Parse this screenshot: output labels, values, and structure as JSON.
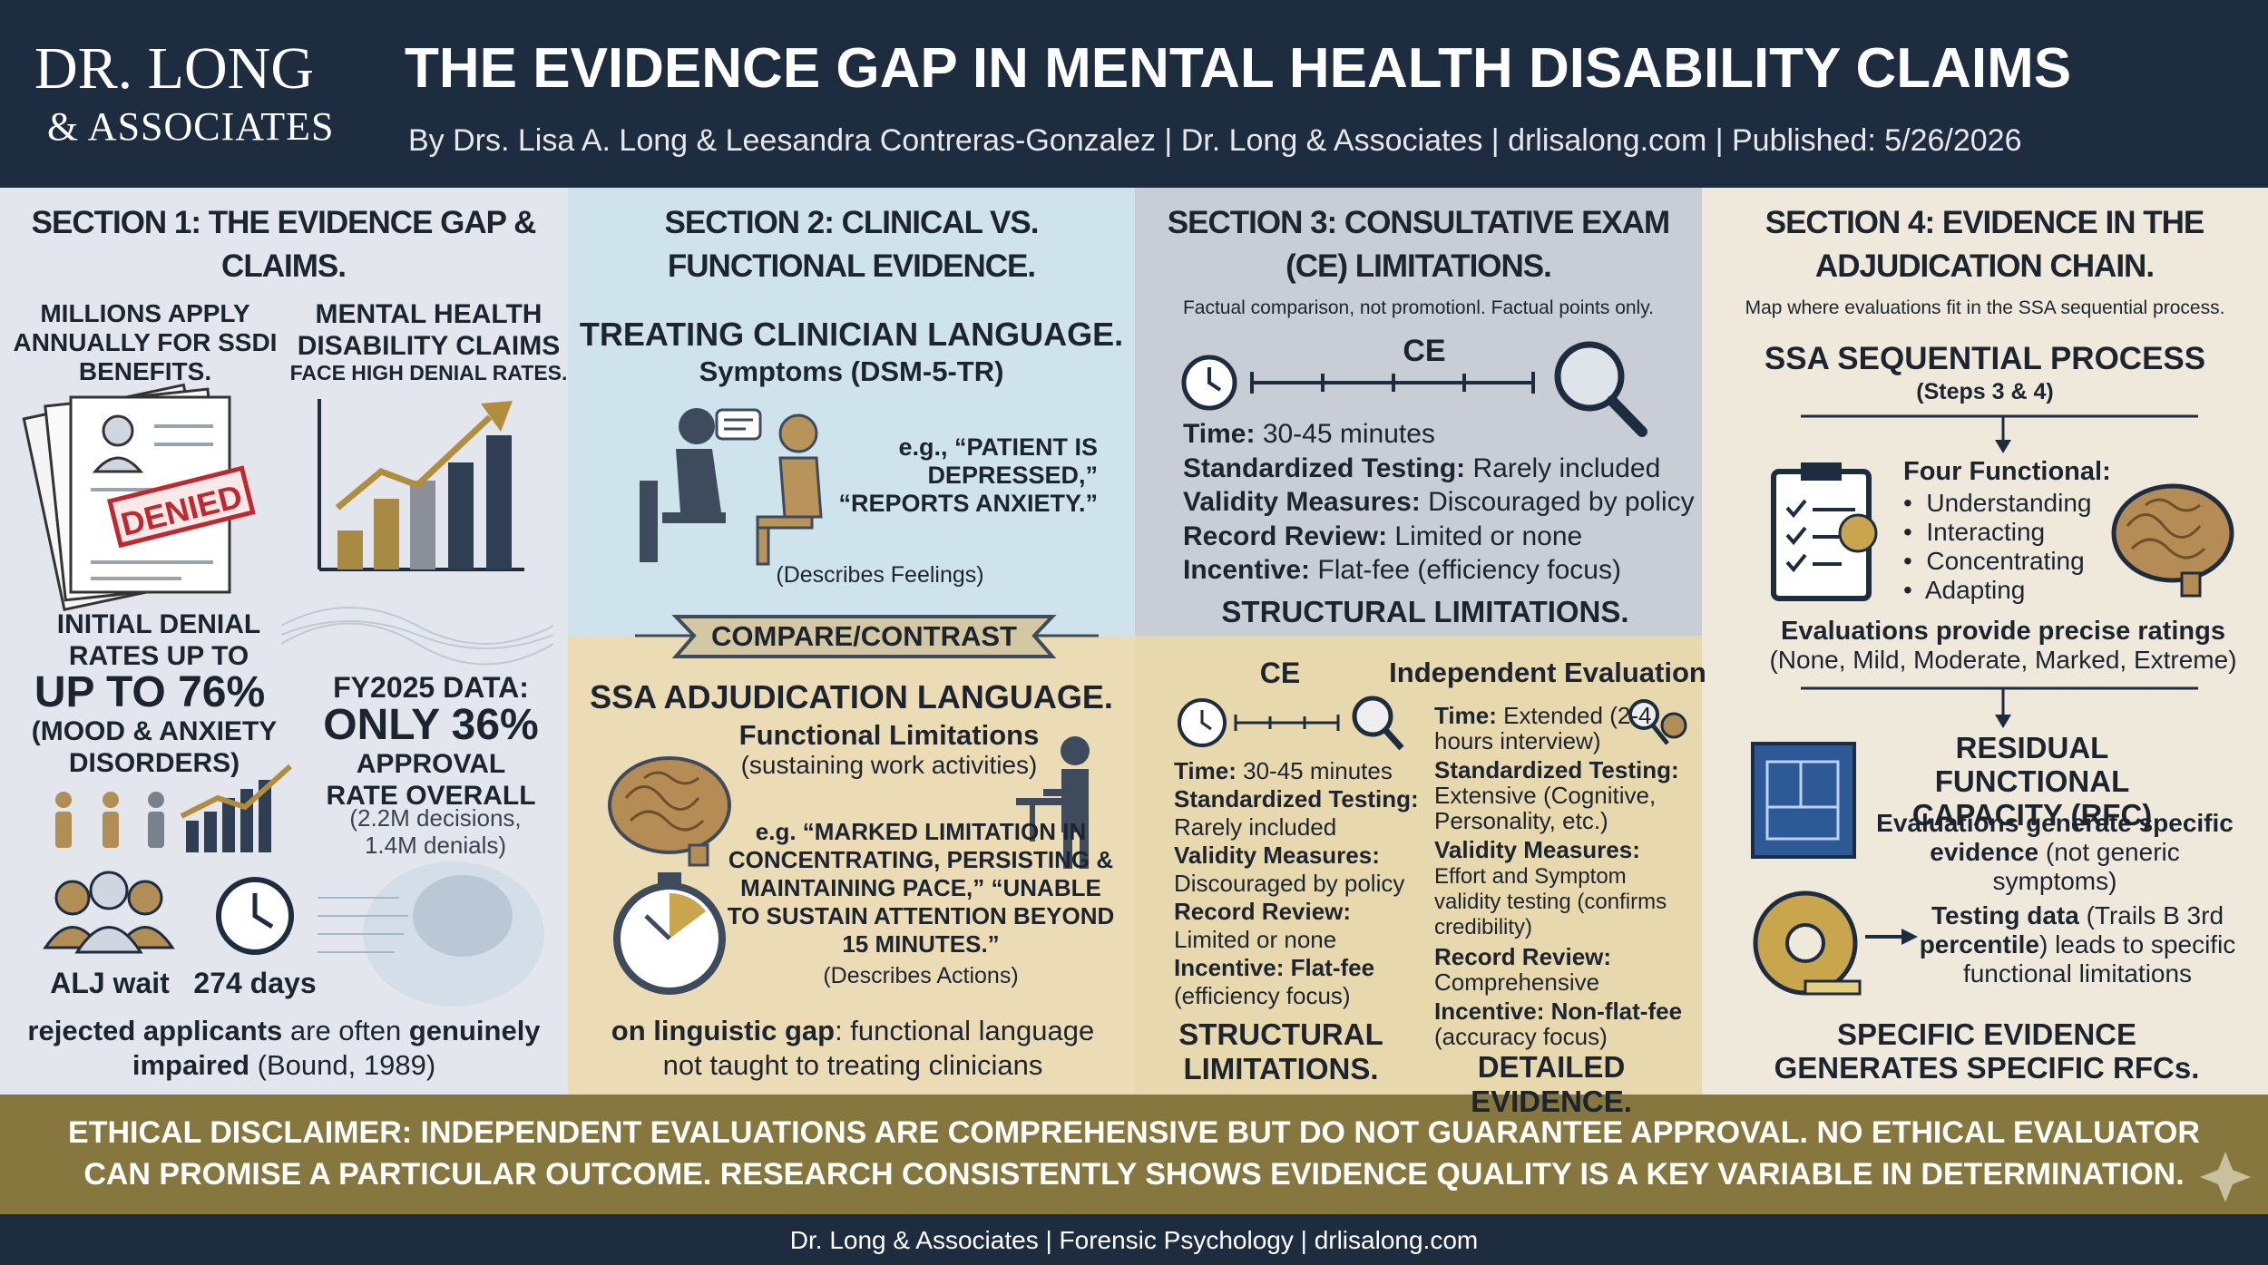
{
  "header": {
    "logo_line1": "DR. LONG",
    "logo_line2": "& ASSOCIATES",
    "title": "THE EVIDENCE GAP IN MENTAL HEALTH DISABILITY CLAIMS",
    "byline": "By Drs. Lisa A. Long & Leesandra Contreras-Gonzalez | Dr. Long & Associates | drlisalong.com | Published: 5/26/2026"
  },
  "section1": {
    "heading": "SECTION 1: THE EVIDENCE GAP & CLAIMS.",
    "stat1": "MILLIONS APPLY ANNUALLY FOR SSDI BENEFITS.",
    "stat2_title": "MENTAL HEALTH DISABILITY CLAIMS",
    "stat2_sub": "FACE HIGH DENIAL RATES.",
    "stamp": "DENIED",
    "denial_label": "INITIAL DENIAL RATES UP TO",
    "denial_value": "UP TO 76%",
    "denial_note": "(MOOD & ANXIETY DISORDERS)",
    "fy_label": "FY2025 DATA:",
    "fy_value": "ONLY 36%",
    "fy_desc": "APPROVAL RATE OVERALL",
    "fy_note": "(2.2M decisions, 1.4M denials)",
    "wait_label": "ALJ wait",
    "wait_value": "274 days",
    "quote": [
      "rejected applicants",
      " are often ",
      "genuinely impaired",
      " (Bound, 1989)"
    ]
  },
  "section2": {
    "heading": "SECTION 2: CLINICAL VS. FUNCTIONAL EVIDENCE.",
    "clin_title": "TREATING CLINICIAN LANGUAGE.",
    "clin_sub": "Symptoms (DSM-5-TR)",
    "clin_quote": "e.g., “PATIENT IS DEPRESSED,” “REPORTS ANXIETY.”",
    "clin_note": "(Describes Feelings)",
    "compare": "COMPARE/CONTRAST",
    "ssa_title": "SSA ADJUDICATION LANGUAGE.",
    "ssa_sub": "Functional Limitations",
    "ssa_sub2": "(sustaining work activities)",
    "ssa_quote": "e.g. “MARKED LIMITATION IN CONCENTRATING, PERSISTING & MAINTAINING PACE,” “UNABLE TO SUSTAIN ATTENTION BEYOND 15 MINUTES.”",
    "ssa_note": "(Describes Actions)",
    "gap": [
      "on linguistic gap",
      ": functional language not taught to treating clinicians"
    ]
  },
  "section3": {
    "heading": "SECTION 3: CONSULTATIVE EXAM (CE) LIMITATIONS.",
    "subtitle": "Factual comparison, not promotionl. Factual points only.",
    "timeline_label": "CE",
    "items": [
      [
        "Time:",
        "30-45 minutes"
      ],
      [
        "Standardized Testing:",
        "Rarely included"
      ],
      [
        "Validity Measures:",
        "Discouraged by policy"
      ],
      [
        "Record Review:",
        "Limited or none"
      ],
      [
        "Incentive:",
        "Flat-fee (efficiency focus)"
      ]
    ],
    "structural": "STRUCTURAL LIMITATIONS.",
    "ce_title": "CE",
    "ie_title": "Independent Evaluation",
    "ce_items": [
      [
        "Time:",
        "30-45 minutes"
      ],
      [
        "Standardized Testing:",
        "Rarely included"
      ],
      [
        "Validity Measures:",
        "Discouraged by policy"
      ],
      [
        "Record Review:",
        "Limited or none"
      ],
      [
        "Incentive: Flat-fee",
        "(efficiency focus)"
      ]
    ],
    "ie_items": [
      [
        "Time:",
        "Extended (2-4 hours interview)"
      ],
      [
        "Standardized Testing:",
        "Extensive (Cognitive, Personality, etc.)"
      ],
      [
        "Validity Measures:",
        "Effort and Symptom validity testing (confirms credibility)"
      ],
      [
        "Record Review:",
        "Comprehensive"
      ],
      [
        "Incentive: Non-flat-fee",
        "(accuracy focus)"
      ]
    ],
    "ce_footer": "STRUCTURAL LIMITATIONS.",
    "ie_footer": "DETAILED EVIDENCE."
  },
  "section4": {
    "heading": "SECTION 4: EVIDENCE IN THE ADJUDICATION CHAIN.",
    "subtitle": "Map where evaluations fit in the SSA sequential process.",
    "process_title": "SSA SEQUENTIAL PROCESS",
    "process_steps": "(Steps 3 & 4)",
    "functional_title": "Four Functional:",
    "functional_items": [
      "Understanding",
      "Interacting",
      "Concentrating",
      "Adapting"
    ],
    "ratings_title": "Evaluations provide precise ratings",
    "ratings": "(None, Mild, Moderate, Marked, Extreme)",
    "rfc_title": "RESIDUAL FUNCTIONAL CAPACITY (RFC)",
    "rfc_desc": [
      "Evaluations generate specific evidence",
      " (not generic symptoms)"
    ],
    "testing": [
      "Testing data",
      " (Trails B 3rd ",
      "percentile",
      ") leads to specific functional limitations"
    ],
    "conclusion": "SPECIFIC EVIDENCE GENERATES SPECIFIC RFCs."
  },
  "disclaimer": "ETHICAL DISCLAIMER: INDEPENDENT EVALUATIONS ARE COMPREHENSIVE BUT DO NOT GUARANTEE APPROVAL. NO ETHICAL EVALUATOR CAN PROMISE A PARTICULAR OUTCOME. RESEARCH CONSISTENTLY SHOWS EVIDENCE QUALITY IS A KEY VARIABLE IN DETERMINATION.",
  "footer": "Dr. Long & Associates | Forensic Psychology | drlisalong.com"
}
